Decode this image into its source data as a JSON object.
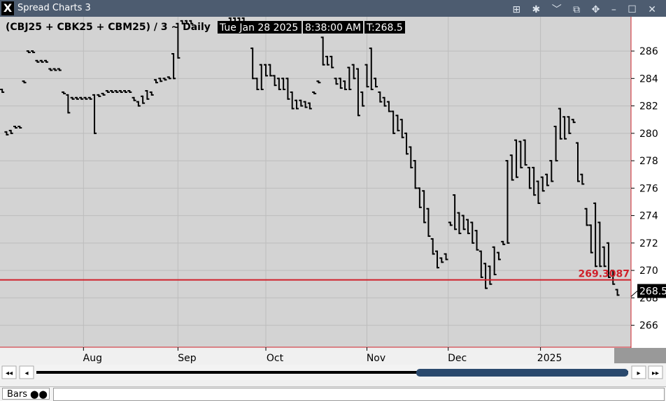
{
  "window_title": "Spread Charts 3",
  "chart_data": {
    "type": "hl",
    "title": "(CBJ25 + CBK25 + CBM25) / 3 ~ Daily",
    "date": "Tue Jan 28 2025",
    "time": "8:38:00 AM",
    "last_label": "T:268.5",
    "last_price": 268.5,
    "ref_line": 269.3087,
    "ref_color": "#d0202a",
    "color": "#000000",
    "grid": true,
    "xlim": [
      -0.5,
      143.1
    ],
    "xticks": [
      {
        "value": 18.5,
        "label": "Aug"
      },
      {
        "value": 40,
        "label": "Sep"
      },
      {
        "value": 60,
        "label": "Oct"
      },
      {
        "value": 83,
        "label": "Nov"
      },
      {
        "value": 101.5,
        "label": "Dec"
      },
      {
        "value": 122.5,
        "label": "2025"
      }
    ],
    "ylim": [
      264.4,
      288.5
    ],
    "yticks": [
      266,
      268,
      270,
      272,
      274,
      276,
      278,
      280,
      282,
      284,
      286
    ],
    "high": [
      283.2,
      280.1,
      280.2,
      280.5,
      280.5,
      283.8,
      286.0,
      286.0,
      285.3,
      285.3,
      285.3,
      284.7,
      284.7,
      284.7,
      283.0,
      282.8,
      282.6,
      282.6,
      282.6,
      282.6,
      282.6,
      282.8,
      282.8,
      282.9,
      283.1,
      283.1,
      283.1,
      283.1,
      283.1,
      283.1,
      282.6,
      282.3,
      282.7,
      283.1,
      283.0,
      283.9,
      284.0,
      284.0,
      284.1,
      285.8,
      288.0,
      288.2,
      288.2,
      288.2,
      null,
      null,
      null,
      null,
      null,
      null,
      null,
      null,
      288.4,
      288.4,
      288.4,
      288.4,
      288.0,
      286.2,
      284.0,
      285.0,
      285.0,
      285.0,
      284.2,
      284.0,
      284.0,
      284.0,
      283.0,
      282.4,
      282.4,
      282.3,
      282.2,
      283.0,
      283.8,
      287.0,
      285.6,
      285.6,
      284.0,
      284.0,
      283.8,
      284.8,
      285.0,
      284.7,
      283.0,
      285.0,
      286.2,
      284.0,
      283.0,
      282.6,
      282.3,
      281.6,
      281.3,
      281.0,
      280.0,
      279.0,
      278.0,
      276.0,
      275.8,
      274.5,
      272.3,
      271.4,
      270.9,
      271.2,
      273.5,
      275.5,
      274.2,
      274.0,
      273.7,
      273.5,
      272.9,
      271.4,
      270.5,
      270.3,
      271.7,
      271.3,
      272.1,
      278.0,
      278.4,
      279.5,
      279.4,
      279.5,
      277.5,
      277.5,
      276.5,
      276.8,
      277.0,
      278.0,
      280.5,
      281.8,
      281.2,
      281.2,
      281.0,
      279.3,
      277.0,
      274.5,
      273.3,
      274.9,
      273.5,
      271.7,
      272.0,
      270.0,
      268.6
    ],
    "low": [
      283.0,
      279.9,
      280.0,
      280.4,
      280.4,
      283.7,
      285.9,
      285.9,
      285.2,
      285.2,
      285.2,
      284.6,
      284.6,
      284.6,
      282.9,
      281.5,
      282.5,
      282.5,
      282.5,
      282.5,
      282.5,
      280.0,
      282.7,
      282.8,
      283.0,
      283.0,
      283.0,
      283.0,
      283.0,
      283.0,
      282.4,
      282.0,
      282.2,
      282.5,
      282.8,
      283.7,
      283.8,
      283.9,
      284.0,
      284.0,
      285.5,
      288.0,
      288.0,
      288.0,
      null,
      null,
      null,
      null,
      null,
      null,
      null,
      null,
      288.0,
      288.0,
      288.0,
      288.0,
      287.6,
      284.0,
      283.2,
      283.2,
      284.2,
      284.2,
      283.5,
      283.2,
      283.2,
      282.5,
      281.8,
      281.8,
      282.0,
      281.9,
      281.8,
      282.9,
      283.7,
      285.0,
      285.0,
      284.8,
      283.6,
      283.3,
      283.2,
      283.2,
      284.0,
      281.3,
      282.0,
      283.4,
      283.2,
      283.4,
      282.3,
      282.0,
      281.6,
      280.0,
      280.2,
      279.7,
      278.5,
      277.5,
      276.0,
      274.6,
      273.5,
      272.5,
      271.2,
      270.2,
      270.6,
      270.8,
      273.3,
      273.0,
      272.7,
      273.0,
      272.7,
      272.0,
      271.5,
      269.5,
      268.7,
      269.0,
      269.7,
      270.8,
      271.9,
      272.0,
      276.6,
      276.8,
      277.5,
      277.7,
      276.0,
      275.5,
      274.9,
      275.8,
      276.2,
      276.5,
      278.0,
      279.6,
      279.6,
      280.0,
      280.8,
      276.5,
      276.3,
      273.3,
      271.3,
      270.3,
      270.3,
      270.3,
      269.5,
      269.0,
      268.2
    ]
  },
  "status": "Bars"
}
